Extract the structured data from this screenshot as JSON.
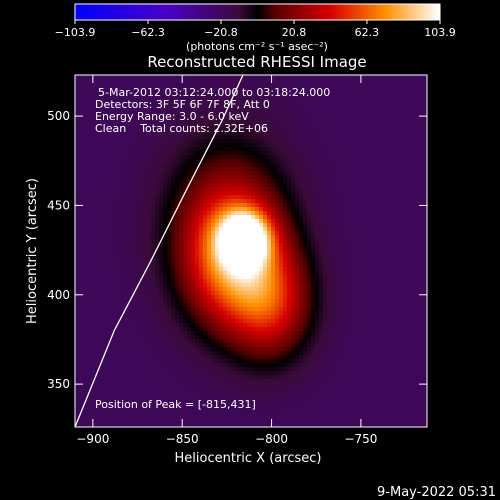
{
  "chart_data": {
    "type": "heatmap",
    "title": "Reconstructed RHESSI Image",
    "xlabel": "Heliocentric X (arcsec)",
    "ylabel": "Heliocentric Y (arcsec)",
    "xlim": [
      -910,
      -713
    ],
    "ylim": [
      326,
      523
    ],
    "x_ticks": [
      -900,
      -850,
      -800,
      -750
    ],
    "x_tick_labels": [
      "−900",
      "−850",
      "−800",
      "−750"
    ],
    "y_ticks": [
      350,
      400,
      450,
      500
    ],
    "y_tick_labels": [
      "350",
      "400",
      "450",
      "500"
    ],
    "colorbar": {
      "ticks": [
        -103.9,
        -62.3,
        -20.8,
        20.8,
        62.3,
        103.9
      ],
      "tick_labels": [
        "−103.9",
        "−62.3",
        "−20.8",
        "20.8",
        "62.3",
        "103.9"
      ],
      "unit_label": "(photons cm⁻² s⁻¹ asec⁻²)",
      "range": [
        -103.9,
        103.9
      ]
    },
    "annotations": {
      "time_range": "5-Mar-2012 03:12:24.000 to 03:18:24.000",
      "detectors": "Detectors: 3F 5F 6F 7F 8F, Att 0",
      "energy": "Energy Range: 3.0 - 6.0 keV",
      "clean": "Clean    Total counts: 2.32E+06",
      "peak": "Position of Peak = [-815,431]"
    },
    "peak": [
      -815,
      431
    ],
    "limb_curve": [
      [
        -910,
        326
      ],
      [
        -888,
        380
      ],
      [
        -868,
        418
      ],
      [
        -848,
        458
      ],
      [
        -828,
        497
      ],
      [
        -816,
        523
      ]
    ],
    "sources": [
      {
        "x": -815,
        "y": 431,
        "sx": 9,
        "sy": 10,
        "amp": 110
      },
      {
        "x": -822,
        "y": 420,
        "sx": 18,
        "sy": 26,
        "amp": 72
      },
      {
        "x": -800,
        "y": 395,
        "sx": 16,
        "sy": 22,
        "amp": 55
      },
      {
        "x": -825,
        "y": 440,
        "sx": 25,
        "sy": 35,
        "amp": 35
      }
    ],
    "background_level": -20
  },
  "footer": {
    "timestamp": "9-May-2022 05:31"
  }
}
